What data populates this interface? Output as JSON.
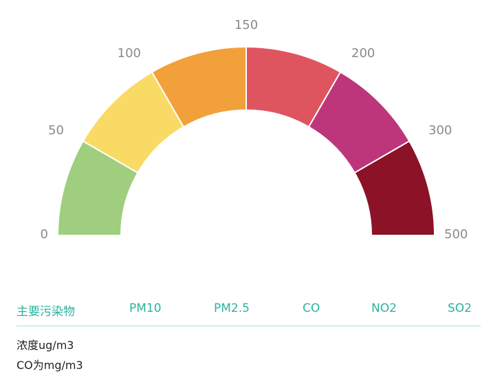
{
  "chart_data": {
    "type": "gauge",
    "ticks": [
      "0",
      "50",
      "100",
      "150",
      "200",
      "300",
      "500"
    ],
    "segments": [
      {
        "from": "0",
        "to": "50",
        "color": "#9fce7e"
      },
      {
        "from": "50",
        "to": "100",
        "color": "#f9da64"
      },
      {
        "from": "100",
        "to": "150",
        "color": "#f1a03a"
      },
      {
        "from": "150",
        "to": "200",
        "color": "#df555f"
      },
      {
        "from": "200",
        "to": "300",
        "color": "#bd367b"
      },
      {
        "from": "300",
        "to": "500",
        "color": "#8b1227"
      }
    ]
  },
  "pollutants": {
    "header": "主要污染物",
    "items": [
      "PM10",
      "PM2.5",
      "CO",
      "NO2",
      "SO2"
    ]
  },
  "units": {
    "line1": "浓度ug/m3",
    "line2": "CO为mg/m3"
  }
}
